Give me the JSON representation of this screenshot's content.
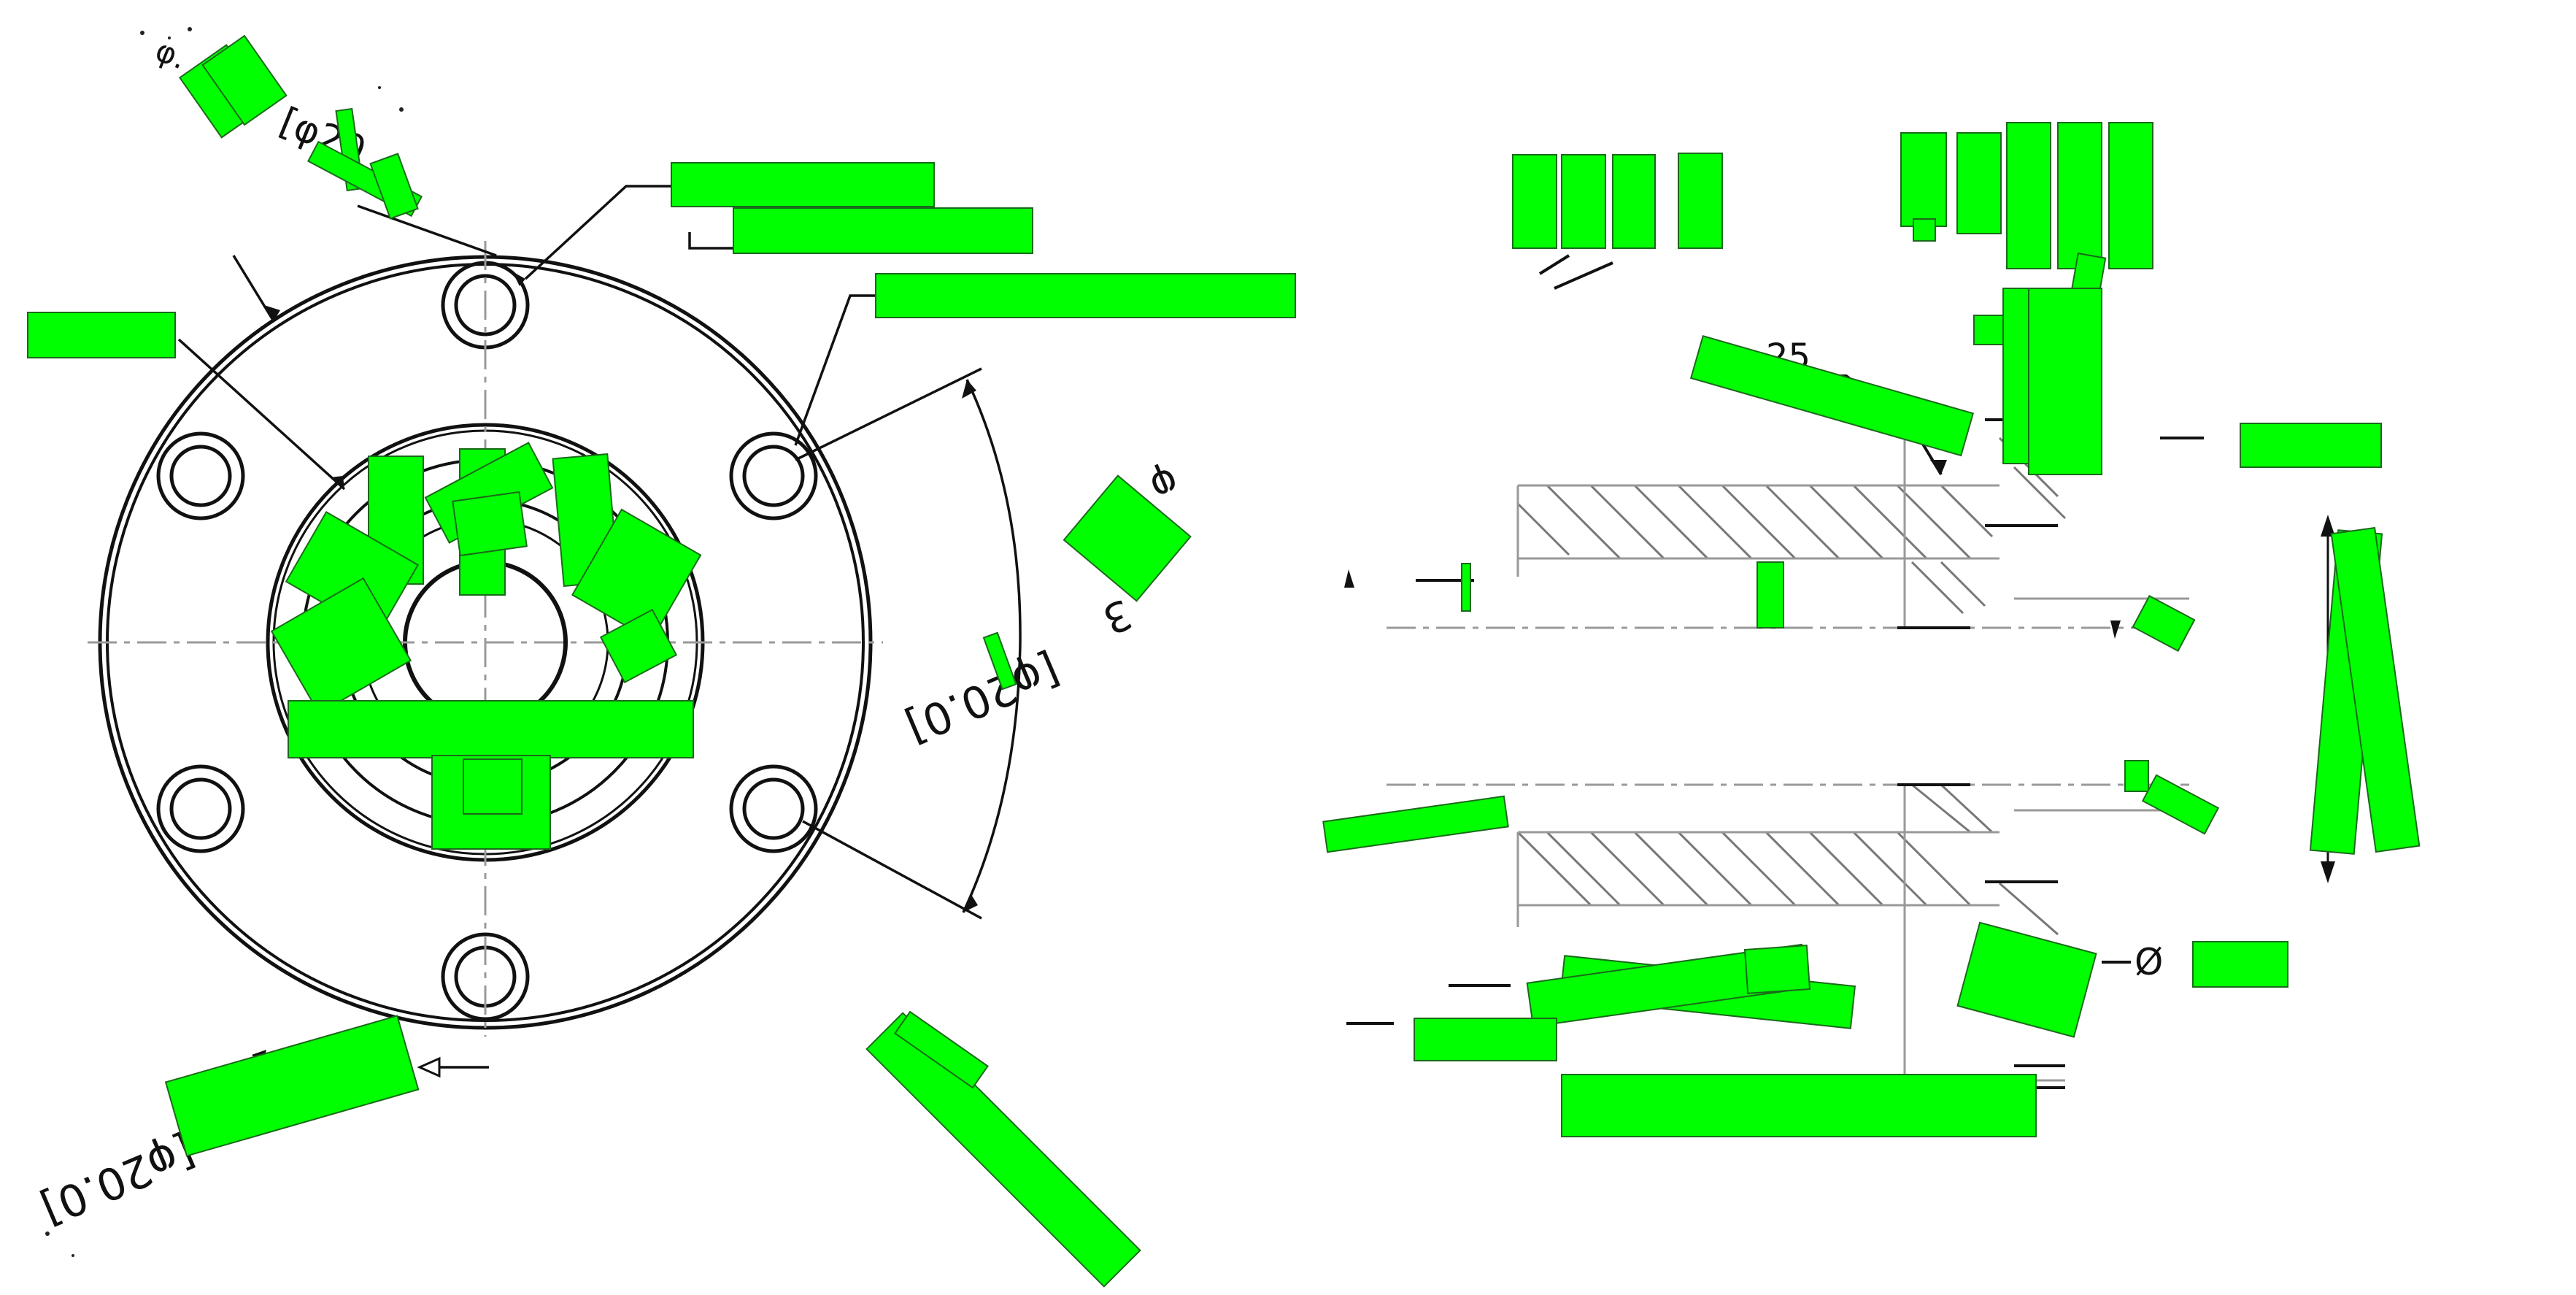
{
  "drawing": {
    "colors": {
      "ink": "#111111",
      "hatch": "#777777",
      "centerline": "#9a9a9a",
      "redaction": "#00ff00",
      "redaction_edge": "#1a6a1a"
    },
    "labels": {
      "dim_top_left_partial": "φ.",
      "dim_top_left_bracket": "[φ20",
      "dim_bottom_left": "[φ20.0]",
      "dim_right_upper": "φ",
      "dim_right_bracket": "[φ20.0]",
      "dim_right_fragment": "3",
      "section_note_fragment": "25",
      "diameter_symbol": "Ø"
    }
  }
}
